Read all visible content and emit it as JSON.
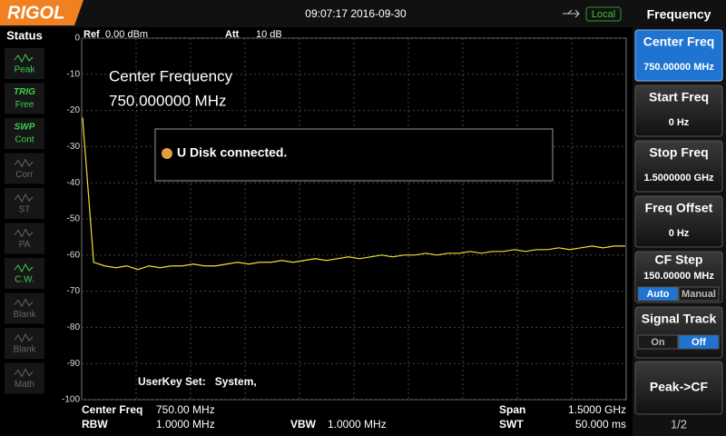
{
  "header": {
    "logo": "RIGOL",
    "datetime": "09:07:17 2016-09-30",
    "status": "Local"
  },
  "status_panel": {
    "title": "Status",
    "items": [
      {
        "tag": null,
        "label": "Peak"
      },
      {
        "tag": "TRIG",
        "label": "Free"
      },
      {
        "tag": "SWP",
        "label": "Cont"
      },
      {
        "tag": null,
        "label": "Corr"
      },
      {
        "tag": null,
        "label": "ST"
      },
      {
        "tag": null,
        "label": "PA"
      },
      {
        "tag": null,
        "label": "C.W."
      },
      {
        "tag": null,
        "label": "Blank"
      },
      {
        "tag": null,
        "label": "Blank"
      },
      {
        "tag": null,
        "label": "Math"
      }
    ]
  },
  "chart_data": {
    "type": "line",
    "ref_label": "Ref",
    "ref_value": "0.00 dBm",
    "att_label": "Att",
    "att_value": "10 dB",
    "annotation": [
      "Center Frequency",
      "750.000000 MHz"
    ],
    "message": "U Disk connected.",
    "userkey": "UserKey Set:   System,",
    "ylim": [
      -100,
      0
    ],
    "yticks": [
      0,
      -10,
      -20,
      -30,
      -40,
      -50,
      -60,
      -70,
      -80,
      -90,
      -100
    ],
    "grid": true,
    "color": "#f0e030",
    "values": [
      -22,
      -62,
      -63,
      -63.5,
      -63,
      -64,
      -63,
      -63.5,
      -63,
      -63,
      -62.5,
      -63,
      -63,
      -62.5,
      -62,
      -62.5,
      -62,
      -62,
      -61.5,
      -62,
      -61.5,
      -61,
      -61.5,
      -61,
      -60.5,
      -61,
      -60.5,
      -60,
      -60.5,
      -60,
      -60,
      -59.5,
      -60,
      -59.5,
      -59.5,
      -59,
      -59.5,
      -59,
      -59,
      -58.5,
      -59,
      -58.5,
      -58.5,
      -58,
      -58.5,
      -58,
      -57.5,
      -58,
      -57.5,
      -57.5
    ]
  },
  "footer": {
    "center_label": "Center Freq",
    "center_value": "750.00 MHz",
    "span_label": "Span",
    "span_value": "1.5000 GHz",
    "rbw_label": "RBW",
    "rbw_value": "1.0000 MHz",
    "vbw_label": "VBW",
    "vbw_value": "1.0000 MHz",
    "swt_label": "SWT",
    "swt_value": "50.000 ms"
  },
  "menu": {
    "title": "Frequency",
    "items": [
      {
        "label": "Center Freq",
        "value": "750.00000 MHz"
      },
      {
        "label": "Start Freq",
        "value": "0 Hz"
      },
      {
        "label": "Stop Freq",
        "value": "1.5000000 GHz"
      },
      {
        "label": "Freq Offset",
        "value": "0 Hz"
      },
      {
        "label": "CF Step",
        "value": "150.00000 MHz",
        "options": [
          "Auto",
          "Manual"
        ]
      },
      {
        "label": "Signal Track",
        "options": [
          "On",
          "Off"
        ]
      },
      {
        "label": "Peak->CF"
      }
    ],
    "page": "1/2"
  }
}
